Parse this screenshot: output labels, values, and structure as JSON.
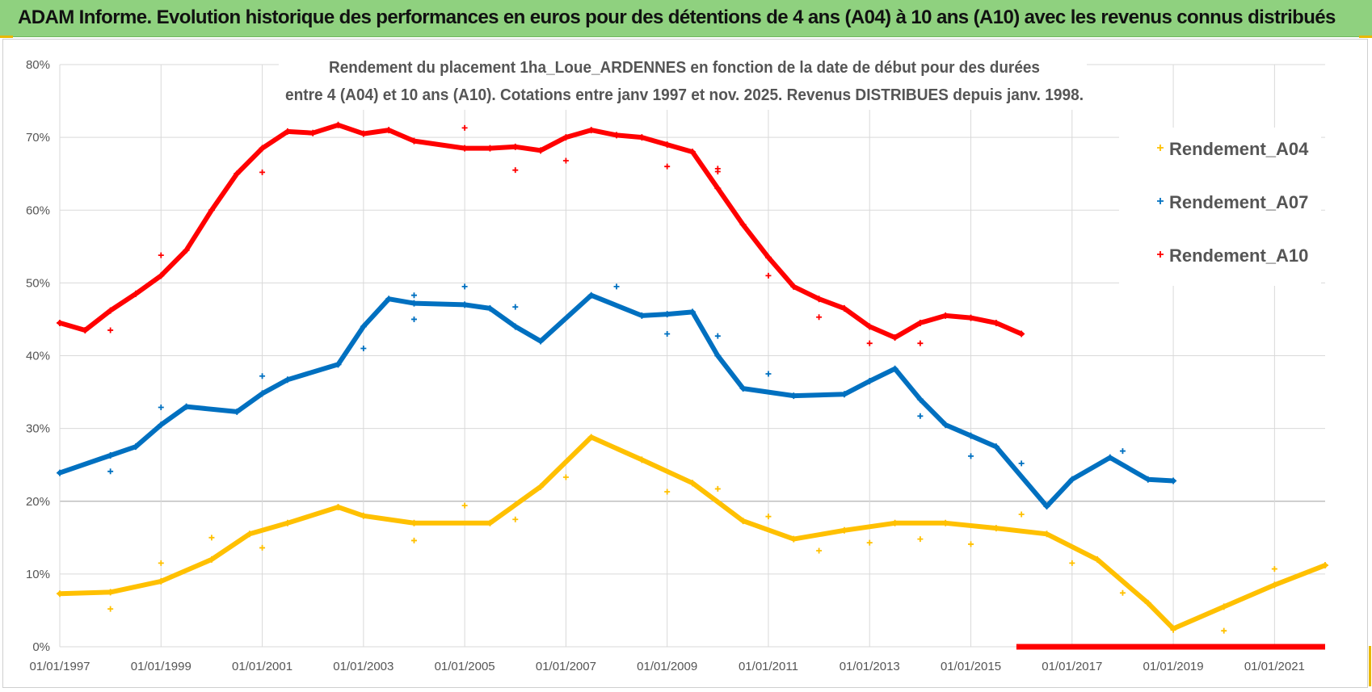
{
  "banner": {
    "title": "ADAM Informe. Evolution historique des performances en euros pour des détentions de 4 ans (A04) à 10 ans (A10) avec les revenus connus distribués"
  },
  "colors": {
    "banner_bg": "#8fd17f",
    "A04": "#ffc000",
    "A07": "#0070c0",
    "A10": "#ff0000",
    "grid": "#d9d9d9",
    "text": "#555555"
  },
  "chart_data": {
    "type": "scatter",
    "title_lines": [
      "Rendement du placement 1ha_Loue_ARDENNES en fonction de la date de début pour des durées",
      "entre 4 (A04) et 10 ans (A10). Cotations entre janv 1997 et nov. 2025. Revenus DISTRIBUES depuis janv. 1998."
    ],
    "x_unit": "year",
    "xlim": [
      1997.0,
      2022.0
    ],
    "ylim": [
      0,
      80
    ],
    "y_tick_values": [
      0,
      10,
      20,
      30,
      40,
      50,
      60,
      70,
      80
    ],
    "y_tick_labels": [
      "0%",
      "10%",
      "20%",
      "30%",
      "40%",
      "50%",
      "60%",
      "70%",
      "80%"
    ],
    "x_tick_values": [
      1997,
      1999,
      2001,
      2003,
      2005,
      2007,
      2009,
      2011,
      2013,
      2015,
      2017,
      2019,
      2021
    ],
    "x_tick_labels": [
      "01/01/1997",
      "01/01/1999",
      "01/01/2001",
      "01/01/2003",
      "01/01/2005",
      "01/01/2007",
      "01/01/2009",
      "01/01/2011",
      "01/01/2013",
      "01/01/2015",
      "01/01/2017",
      "01/01/2019",
      "01/01/2021"
    ],
    "grid": true,
    "legend_position": "top-right",
    "series": [
      {
        "name": "Rendement_A04",
        "x": [
          1997.0,
          1998.0,
          1999.0,
          2000.0,
          2000.75,
          2001.5,
          2002.5,
          2003.0,
          2004.0,
          2005.5,
          2006.5,
          2007.5,
          2008.5,
          2009.5,
          2010.5,
          2011.5,
          2012.5,
          2013.5,
          2014.5,
          2015.5,
          2016.5,
          2017.5,
          2018.5,
          2019.0,
          2020.0,
          2021.0,
          2022.0
        ],
        "y": [
          7.3,
          7.5,
          9.0,
          12.0,
          15.5,
          17.0,
          19.2,
          18.0,
          17.0,
          17.0,
          22.0,
          28.8,
          25.7,
          22.5,
          17.3,
          14.8,
          16.0,
          17.0,
          17.0,
          16.3,
          15.5,
          12.0,
          6.0,
          2.5,
          5.5,
          8.5,
          11.2
        ],
        "outliers_x": [
          1998.0,
          1999.0,
          2000.0,
          2001.0,
          2004.0,
          2005.0,
          2006.0,
          2007.0,
          2009.0,
          2010.0,
          2011.0,
          2012.0,
          2013.0,
          2014.0,
          2015.0,
          2016.0,
          2017.0,
          2018.0,
          2019.0,
          2020.0,
          2021.0
        ],
        "outliers_y": [
          5.2,
          11.5,
          15.0,
          13.6,
          14.6,
          19.4,
          17.5,
          23.3,
          21.3,
          21.7,
          17.9,
          13.2,
          14.3,
          14.8,
          14.1,
          18.2,
          11.5,
          7.4,
          2.3,
          2.2,
          10.7
        ]
      },
      {
        "name": "Rendement_A07",
        "x": [
          1997.0,
          1998.0,
          1998.5,
          1999.0,
          1999.5,
          2000.5,
          2001.0,
          2001.5,
          2002.5,
          2003.0,
          2003.5,
          2004.0,
          2005.0,
          2005.5,
          2006.0,
          2006.5,
          2007.5,
          2008.5,
          2009.0,
          2009.5,
          2010.0,
          2010.5,
          2011.5,
          2012.5,
          2013.0,
          2013.5,
          2014.0,
          2014.5,
          2015.0,
          2015.5,
          2016.5,
          2017.0,
          2017.75,
          2018.5,
          2019.0
        ],
        "y": [
          23.9,
          26.3,
          27.5,
          30.5,
          33.0,
          32.3,
          34.8,
          36.7,
          38.8,
          44.0,
          47.8,
          47.2,
          47.0,
          46.5,
          44.0,
          42.0,
          48.3,
          45.5,
          45.7,
          46.0,
          40.0,
          35.5,
          34.5,
          34.7,
          36.5,
          38.2,
          34.0,
          30.5,
          29.0,
          27.5,
          19.3,
          23.0,
          26.0,
          23.0,
          22.8
        ],
        "outliers_x": [
          1998.0,
          1999.0,
          2001.0,
          2003.0,
          2004.0,
          2004.0,
          2005.0,
          2006.0,
          2008.0,
          2009.0,
          2010.0,
          2011.0,
          2014.0,
          2015.0,
          2016.0,
          2018.0
        ],
        "outliers_y": [
          24.1,
          32.9,
          37.2,
          41.0,
          45.0,
          48.3,
          49.5,
          46.7,
          49.5,
          43.0,
          42.7,
          37.5,
          31.7,
          26.2,
          25.2,
          26.9
        ]
      },
      {
        "name": "Rendement_A10",
        "x": [
          1997.0,
          1997.5,
          1998.0,
          1998.5,
          1999.0,
          1999.5,
          2000.0,
          2000.5,
          2001.0,
          2001.5,
          2002.0,
          2002.5,
          2003.0,
          2003.5,
          2004.0,
          2005.0,
          2005.5,
          2006.0,
          2006.5,
          2007.0,
          2007.5,
          2008.0,
          2008.5,
          2009.0,
          2009.5,
          2010.0,
          2010.5,
          2011.0,
          2011.5,
          2012.0,
          2012.5,
          2013.0,
          2013.5,
          2014.0,
          2014.5,
          2015.0,
          2015.5,
          2016.0
        ],
        "y": [
          44.5,
          43.5,
          46.2,
          48.5,
          51.0,
          54.5,
          60.0,
          65.0,
          68.5,
          70.8,
          70.6,
          71.7,
          70.5,
          71.0,
          69.5,
          68.5,
          68.5,
          68.7,
          68.2,
          70.0,
          71.0,
          70.3,
          70.0,
          69.0,
          68.0,
          63.0,
          58.0,
          53.5,
          49.5,
          47.8,
          46.5,
          44.0,
          42.5,
          44.5,
          45.5,
          45.2,
          44.5,
          43.0
        ],
        "outliers_x": [
          1998.0,
          1999.0,
          2001.0,
          2005.0,
          2006.0,
          2007.0,
          2009.0,
          2010.0,
          2010.0,
          2011.0,
          2012.0,
          2013.0,
          2014.0
        ],
        "outliers_y": [
          43.5,
          53.8,
          65.2,
          71.3,
          65.5,
          66.8,
          66.0,
          65.7,
          65.3,
          51.0,
          45.3,
          41.7,
          41.7
        ],
        "zero_band_x": [
          2015.9,
          2022.0
        ]
      }
    ]
  }
}
